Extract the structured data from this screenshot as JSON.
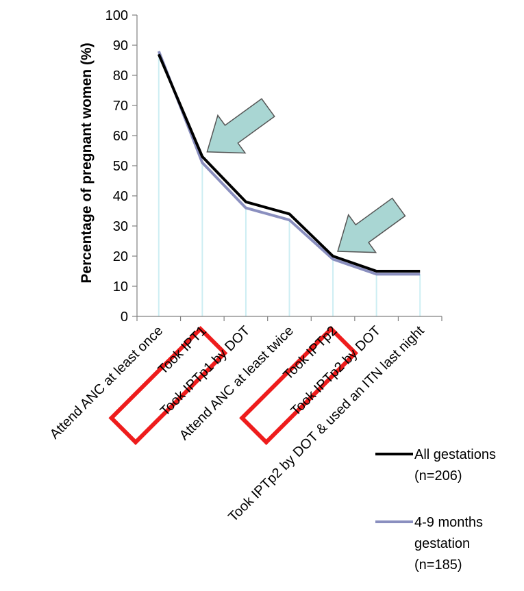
{
  "chart_data": {
    "type": "line",
    "title": "",
    "ylabel": "Percentage of pregnant women (%)",
    "xlabel": "",
    "ylim": [
      0,
      100
    ],
    "ytick_step": 10,
    "categories": [
      "Attend ANC at least once",
      "Took IPT1",
      "Took IPTp1 by DOT",
      "Attend ANC at least twice",
      "Took IPTp2",
      "Took IPTp2 by DOT",
      "Took IPTp2 by DOT & used an ITN last night"
    ],
    "series": [
      {
        "name": "All gestations (n=206)",
        "legend_lines": [
          "All gestations",
          "(n=206)"
        ],
        "color": "#000000",
        "values": [
          87,
          53,
          38,
          34,
          20,
          15,
          15
        ]
      },
      {
        "name": "4-9 months gestation (n=185)",
        "legend_lines": [
          "4-9 months",
          "gestation",
          "(n=185)"
        ],
        "color": "#8a8fbf",
        "values": [
          88,
          51,
          36,
          32,
          19,
          14,
          14
        ]
      }
    ],
    "highlighted_categories": [
      "Took IPT1",
      "Took IPTp2"
    ],
    "annotation_arrow_targets": [
      "Took IPT1",
      "Took IPTp2"
    ],
    "colors": {
      "highlight_box": "#ee1c1c",
      "arrow_fill": "#a9d6d3",
      "drop_lines": "#cdeef3",
      "axis": "#808080"
    },
    "legend_position": "bottom-right"
  }
}
